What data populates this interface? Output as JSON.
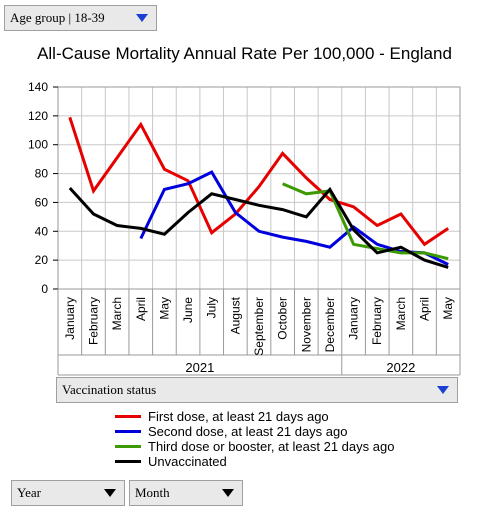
{
  "controls": {
    "age_group": "Age group | 18-39",
    "vaccination_status": "Vaccination status",
    "year": "Year",
    "month": "Month"
  },
  "colors": {
    "first_dose": "#e60000",
    "second_dose": "#0000dd",
    "third_dose": "#3c9a00",
    "unvaccinated": "#000000",
    "grid": "#c8c8c8",
    "dropdown_arrow_blue": "#1a3fd6"
  },
  "chart_data": {
    "type": "line",
    "title": "All-Cause Mortality Annual Rate Per 100,000 - England",
    "categories": [
      "January",
      "February",
      "March",
      "April",
      "May",
      "June",
      "July",
      "August",
      "September",
      "October",
      "November",
      "December",
      "January",
      "February",
      "March",
      "April",
      "May"
    ],
    "year_groups": [
      {
        "label": "2021",
        "start": 0,
        "end": 11
      },
      {
        "label": "2022",
        "start": 12,
        "end": 16
      }
    ],
    "ylim": [
      0,
      140
    ],
    "yticks": [
      0,
      20,
      40,
      60,
      80,
      100,
      120,
      140
    ],
    "grid": true,
    "legend_position": "bottom",
    "series": [
      {
        "name": "First dose, at least 21 days ago",
        "color": "#e60000",
        "values": [
          119,
          68,
          91,
          114,
          83,
          75,
          39,
          52,
          71,
          94,
          77,
          62,
          57,
          44,
          52,
          31,
          42
        ]
      },
      {
        "name": "Second dose, at least 21 days ago",
        "color": "#0000dd",
        "values": [
          null,
          null,
          null,
          35,
          69,
          73,
          81,
          53,
          40,
          36,
          33,
          29,
          43,
          31,
          26,
          25,
          17
        ]
      },
      {
        "name": "Third dose or booster, at least 21 days ago",
        "color": "#3c9a00",
        "values": [
          null,
          null,
          null,
          null,
          null,
          null,
          null,
          null,
          null,
          73,
          66,
          68,
          31,
          28,
          25,
          25,
          21
        ]
      },
      {
        "name": "Unvaccinated",
        "color": "#000000",
        "values": [
          70,
          52,
          44,
          42,
          38,
          53,
          66,
          62,
          58,
          55,
          50,
          69,
          41,
          25,
          29,
          20,
          15
        ]
      }
    ]
  }
}
